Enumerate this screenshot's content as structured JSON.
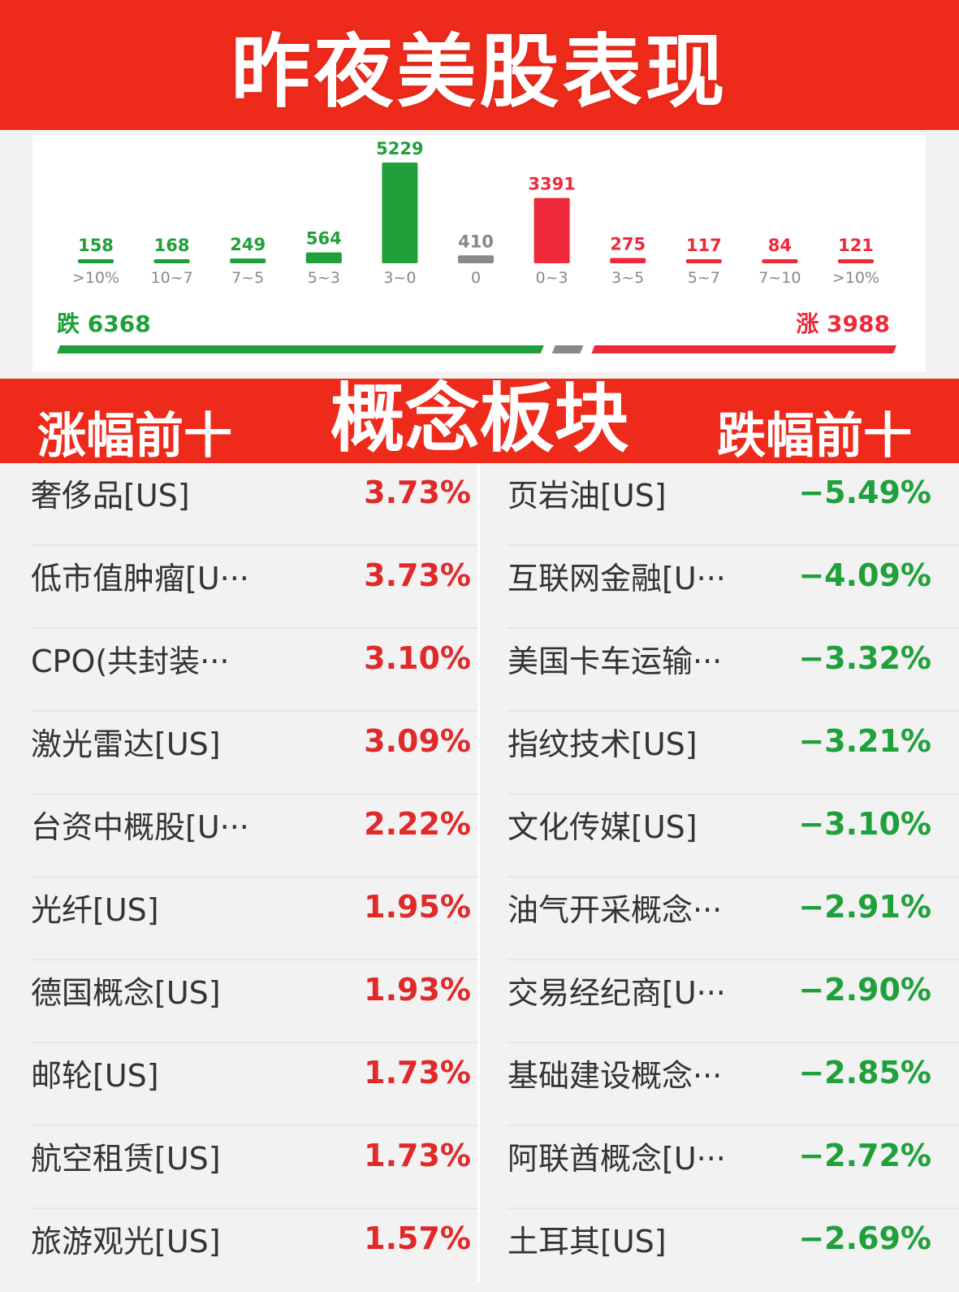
{
  "header": {
    "title": "昨夜美股表现"
  },
  "chart_data": {
    "type": "bar",
    "categories": [
      ">10%",
      "10~7",
      "7~5",
      "5~3",
      "3~0",
      "0",
      "0~3",
      "3~5",
      "5~7",
      "7~10",
      ">10%"
    ],
    "values": [
      158,
      168,
      249,
      564,
      5229,
      410,
      3391,
      275,
      117,
      84,
      121
    ],
    "value_labels": [
      "158",
      "168",
      "249",
      "564",
      "5229",
      "410",
      "3391",
      "275",
      "117",
      "84",
      "121"
    ],
    "groups": [
      "down",
      "down",
      "down",
      "down",
      "down",
      "flat",
      "up",
      "up",
      "up",
      "up",
      "up"
    ],
    "colors": {
      "down": "#1fa03a",
      "flat": "#888888",
      "up": "#ee2a3a"
    },
    "grid": false,
    "summary": {
      "down_label": "跌",
      "down_total": "6368",
      "up_label": "涨",
      "up_total": "3988",
      "down_value": 6368,
      "flat_value": 410,
      "up_value": 3988
    }
  },
  "section": {
    "left_title": "涨幅前十",
    "center_title": "概念板块",
    "right_title": "跌幅前十"
  },
  "gainers": [
    {
      "name": "奢侈品[US]",
      "pct": "3.73%"
    },
    {
      "name": "低市值肿瘤[U···",
      "pct": "3.73%"
    },
    {
      "name": "CPO(共封装···",
      "pct": "3.10%"
    },
    {
      "name": "激光雷达[US]",
      "pct": "3.09%"
    },
    {
      "name": "台资中概股[U···",
      "pct": "2.22%"
    },
    {
      "name": "光纤[US]",
      "pct": "1.95%"
    },
    {
      "name": "德国概念[US]",
      "pct": "1.93%"
    },
    {
      "name": "邮轮[US]",
      "pct": "1.73%"
    },
    {
      "name": "航空租赁[US]",
      "pct": "1.73%"
    },
    {
      "name": "旅游观光[US]",
      "pct": "1.57%"
    }
  ],
  "losers": [
    {
      "name": "页岩油[US]",
      "pct": "−5.49%"
    },
    {
      "name": "互联网金融[U···",
      "pct": "−4.09%"
    },
    {
      "name": "美国卡车运输···",
      "pct": "−3.32%"
    },
    {
      "name": "指纹技术[US]",
      "pct": "−3.21%"
    },
    {
      "name": "文化传媒[US]",
      "pct": "−3.10%"
    },
    {
      "name": "油气开采概念···",
      "pct": "−2.91%"
    },
    {
      "name": "交易经纪商[U···",
      "pct": "−2.90%"
    },
    {
      "name": "基础建设概念···",
      "pct": "−2.85%"
    },
    {
      "name": "阿联酋概念[U···",
      "pct": "−2.72%"
    },
    {
      "name": "土耳其[US]",
      "pct": "−2.69%"
    }
  ]
}
